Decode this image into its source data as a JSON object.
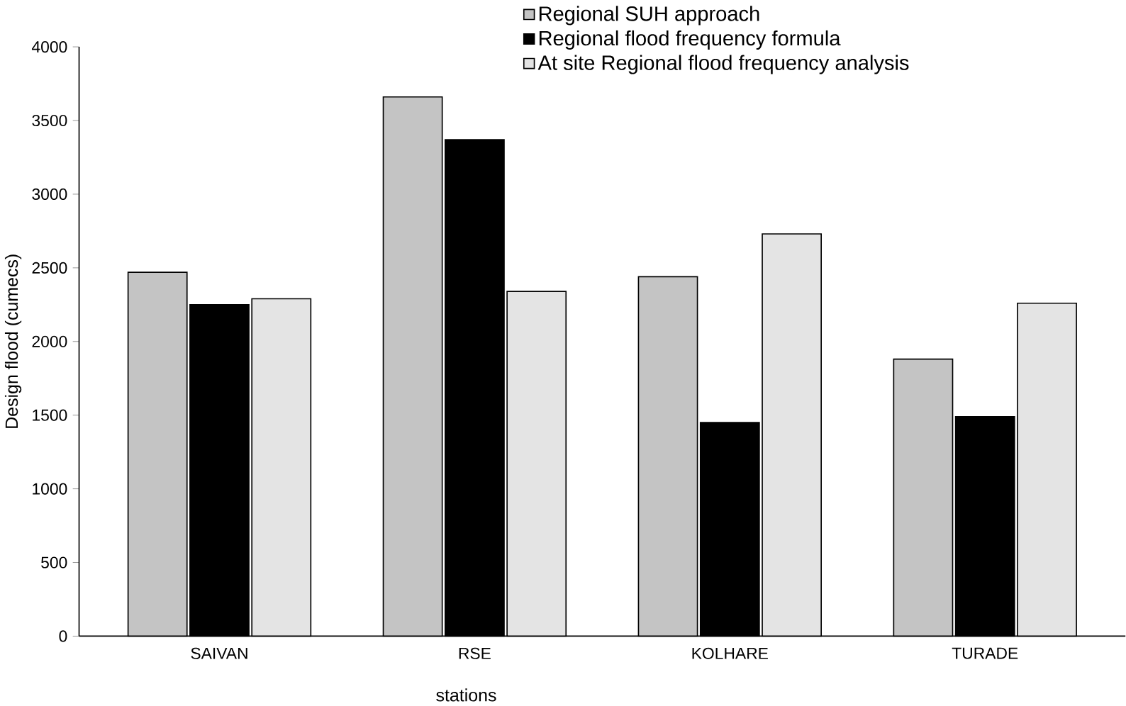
{
  "chart_data": {
    "type": "bar",
    "xlabel": "stations",
    "ylabel": "Design flood (cumecs)",
    "categories": [
      "SAIVAN",
      "RSE",
      "KOLHARE",
      "TURADE"
    ],
    "series": [
      {
        "name": "Regional SUH approach",
        "color": "#c4c4c4",
        "values": [
          2470,
          3660,
          2440,
          1880
        ]
      },
      {
        "name": "Regional flood frequency formula",
        "color": "#000000",
        "values": [
          2250,
          3370,
          1450,
          1490
        ]
      },
      {
        "name": "At site Regional flood frequency analysis",
        "color": "#e4e4e4",
        "values": [
          2290,
          2340,
          2730,
          2260
        ]
      }
    ],
    "ylim": [
      0,
      4000
    ],
    "yticks": [
      0,
      500,
      1000,
      1500,
      2000,
      2500,
      3000,
      3500,
      4000
    ],
    "grid": false,
    "legend": "top right"
  }
}
